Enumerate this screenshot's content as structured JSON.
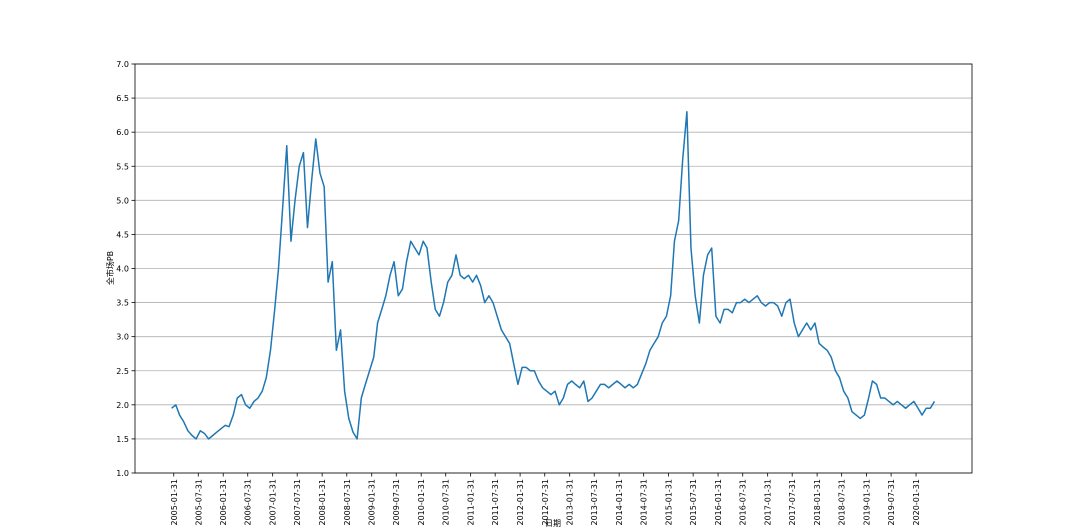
{
  "chart_data": {
    "type": "line",
    "x_label": "日期",
    "y_label": "全市场PB",
    "color": "#1f77b4",
    "grid": "y",
    "xlim": [
      "2004-04-20",
      "2021-03-19"
    ],
    "xticks": [
      "2005-01-31",
      "2005-07-31",
      "2006-01-31",
      "2006-07-31",
      "2007-01-31",
      "2007-07-31",
      "2008-01-31",
      "2008-07-31",
      "2009-01-31",
      "2009-07-31",
      "2010-01-31",
      "2010-07-31",
      "2011-01-31",
      "2011-07-31",
      "2012-01-31",
      "2012-07-31",
      "2013-01-31",
      "2013-07-31",
      "2014-01-31",
      "2014-07-31",
      "2015-01-31",
      "2015-07-31",
      "2016-01-31",
      "2016-07-31",
      "2017-01-31",
      "2017-07-31",
      "2018-01-31",
      "2018-07-31",
      "2019-01-31",
      "2019-07-31",
      "2020-01-31"
    ],
    "ylim": [
      1,
      7
    ],
    "yticks": [
      {
        "value": 1,
        "label": "1.0"
      },
      1.5,
      {
        "value": 2,
        "label": "2.0"
      },
      2.5,
      {
        "value": 3,
        "label": "3.0"
      },
      3.5,
      {
        "value": 4,
        "label": "4.0"
      },
      4.5,
      {
        "value": 5,
        "label": "5.0"
      },
      5.5,
      {
        "value": 6,
        "label": "6.0"
      },
      6.5,
      {
        "value": 7,
        "label": "7.0"
      }
    ],
    "x": [
      "2005-01-15",
      "2005-02-15",
      "2005-03-15",
      "2005-04-15",
      "2005-05-15",
      "2005-06-15",
      "2005-07-15",
      "2005-08-15",
      "2005-09-15",
      "2005-10-15",
      "2005-11-15",
      "2005-12-15",
      "2006-01-15",
      "2006-02-15",
      "2006-03-15",
      "2006-04-15",
      "2006-05-15",
      "2006-06-15",
      "2006-07-15",
      "2006-08-15",
      "2006-09-15",
      "2006-10-15",
      "2006-11-15",
      "2006-12-15",
      "2007-01-15",
      "2007-02-15",
      "2007-03-15",
      "2007-04-15",
      "2007-05-15",
      "2007-06-15",
      "2007-07-15",
      "2007-08-15",
      "2007-09-15",
      "2007-10-15",
      "2007-11-15",
      "2007-12-15",
      "2008-01-15",
      "2008-02-15",
      "2008-03-15",
      "2008-04-15",
      "2008-05-15",
      "2008-06-15",
      "2008-07-15",
      "2008-08-15",
      "2008-09-15",
      "2008-10-15",
      "2008-11-15",
      "2008-12-15",
      "2009-01-15",
      "2009-02-15",
      "2009-03-15",
      "2009-04-15",
      "2009-05-15",
      "2009-06-15",
      "2009-07-15",
      "2009-08-15",
      "2009-09-15",
      "2009-10-15",
      "2009-11-15",
      "2009-12-15",
      "2010-01-15",
      "2010-02-15",
      "2010-03-15",
      "2010-04-15",
      "2010-05-15",
      "2010-06-15",
      "2010-07-15",
      "2010-08-15",
      "2010-09-15",
      "2010-10-15",
      "2010-11-15",
      "2010-12-15",
      "2011-01-15",
      "2011-02-15",
      "2011-03-15",
      "2011-04-15",
      "2011-05-15",
      "2011-06-15",
      "2011-07-15",
      "2011-08-15",
      "2011-09-15",
      "2011-10-15",
      "2011-11-15",
      "2011-12-15",
      "2012-01-15",
      "2012-02-15",
      "2012-03-15",
      "2012-04-15",
      "2012-05-15",
      "2012-06-15",
      "2012-07-15",
      "2012-08-15",
      "2012-09-15",
      "2012-10-15",
      "2012-11-15",
      "2012-12-15",
      "2013-01-15",
      "2013-02-15",
      "2013-03-15",
      "2013-04-15",
      "2013-05-15",
      "2013-06-15",
      "2013-07-15",
      "2013-08-15",
      "2013-09-15",
      "2013-10-15",
      "2013-11-15",
      "2013-12-15",
      "2014-01-15",
      "2014-02-15",
      "2014-03-15",
      "2014-04-15",
      "2014-05-15",
      "2014-06-15",
      "2014-07-15",
      "2014-08-15",
      "2014-09-15",
      "2014-10-15",
      "2014-11-15",
      "2014-12-15",
      "2015-01-15",
      "2015-02-15",
      "2015-03-15",
      "2015-04-15",
      "2015-05-15",
      "2015-06-15",
      "2015-07-15",
      "2015-08-15",
      "2015-09-15",
      "2015-10-15",
      "2015-11-15",
      "2015-12-15",
      "2016-01-15",
      "2016-02-15",
      "2016-03-15",
      "2016-04-15",
      "2016-05-15",
      "2016-06-15",
      "2016-07-15",
      "2016-08-15",
      "2016-09-15",
      "2016-10-15",
      "2016-11-15",
      "2016-12-15",
      "2017-01-15",
      "2017-02-15",
      "2017-03-15",
      "2017-04-15",
      "2017-05-15",
      "2017-06-15",
      "2017-07-15",
      "2017-08-15",
      "2017-09-15",
      "2017-10-15",
      "2017-11-15",
      "2017-12-15",
      "2018-01-15",
      "2018-02-15",
      "2018-03-15",
      "2018-04-15",
      "2018-05-15",
      "2018-06-15",
      "2018-07-15",
      "2018-08-15",
      "2018-09-15",
      "2018-10-15",
      "2018-11-15",
      "2018-12-15",
      "2019-01-15",
      "2019-02-15",
      "2019-03-15",
      "2019-04-15",
      "2019-05-15",
      "2019-06-15",
      "2019-07-15",
      "2019-08-15",
      "2019-09-15",
      "2019-10-15",
      "2019-11-15",
      "2019-12-15",
      "2020-01-15",
      "2020-02-15",
      "2020-03-15",
      "2020-04-15",
      "2020-05-15",
      "2020-06-15"
    ],
    "values": [
      1.95,
      2.0,
      1.85,
      1.75,
      1.62,
      1.55,
      1.5,
      1.62,
      1.58,
      1.5,
      1.55,
      1.6,
      1.65,
      1.7,
      1.68,
      1.85,
      2.1,
      2.15,
      2.0,
      1.95,
      2.05,
      2.1,
      2.2,
      2.4,
      2.8,
      3.4,
      4.0,
      4.9,
      5.8,
      4.4,
      5.0,
      5.5,
      5.7,
      4.6,
      5.3,
      5.9,
      5.4,
      5.2,
      3.8,
      4.1,
      2.8,
      3.1,
      2.2,
      1.8,
      1.6,
      1.5,
      2.1,
      2.3,
      2.5,
      2.7,
      3.2,
      3.4,
      3.6,
      3.9,
      4.1,
      3.6,
      3.7,
      4.1,
      4.4,
      4.3,
      4.2,
      4.4,
      4.3,
      3.8,
      3.4,
      3.3,
      3.5,
      3.8,
      3.9,
      4.2,
      3.9,
      3.85,
      3.9,
      3.8,
      3.9,
      3.75,
      3.5,
      3.6,
      3.5,
      3.3,
      3.1,
      3.0,
      2.9,
      2.6,
      2.3,
      2.55,
      2.55,
      2.5,
      2.5,
      2.35,
      2.25,
      2.2,
      2.15,
      2.2,
      2.0,
      2.1,
      2.3,
      2.35,
      2.3,
      2.25,
      2.35,
      2.05,
      2.1,
      2.2,
      2.3,
      2.3,
      2.25,
      2.3,
      2.35,
      2.3,
      2.25,
      2.3,
      2.25,
      2.3,
      2.45,
      2.6,
      2.8,
      2.9,
      3.0,
      3.2,
      3.3,
      3.6,
      4.4,
      4.7,
      5.6,
      6.3,
      4.3,
      3.6,
      3.2,
      3.9,
      4.2,
      4.3,
      3.3,
      3.2,
      3.4,
      3.4,
      3.35,
      3.5,
      3.5,
      3.55,
      3.5,
      3.55,
      3.6,
      3.5,
      3.45,
      3.5,
      3.5,
      3.45,
      3.3,
      3.5,
      3.55,
      3.2,
      3.0,
      3.1,
      3.2,
      3.1,
      3.2,
      2.9,
      2.85,
      2.8,
      2.7,
      2.5,
      2.4,
      2.2,
      2.1,
      1.9,
      1.85,
      1.8,
      1.85,
      2.1,
      2.35,
      2.3,
      2.1,
      2.1,
      2.05,
      2.0,
      2.05,
      2.0,
      1.95,
      2.0,
      2.05,
      1.95,
      1.85,
      1.95,
      1.95,
      2.05
    ]
  }
}
